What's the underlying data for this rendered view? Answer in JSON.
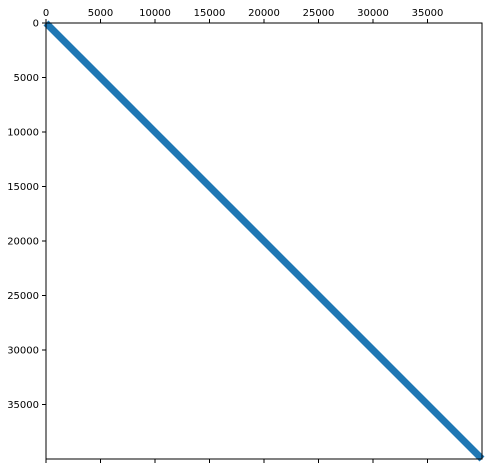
{
  "chart_data": {
    "type": "spy",
    "title": "",
    "xlabel": "",
    "ylabel": "",
    "xlim": [
      0,
      40000
    ],
    "ylim": [
      40000,
      0
    ],
    "x_ticks": [
      0,
      5000,
      10000,
      15000,
      20000,
      25000,
      30000,
      35000
    ],
    "y_ticks": [
      0,
      5000,
      10000,
      15000,
      20000,
      25000,
      30000,
      35000
    ],
    "x_tick_labels": [
      "0",
      "5000",
      "10000",
      "15000",
      "20000",
      "25000",
      "30000",
      "35000"
    ],
    "y_tick_labels": [
      "0",
      "5000",
      "10000",
      "15000",
      "20000",
      "25000",
      "30000",
      "35000"
    ],
    "x_axis_position": "top",
    "grid": false,
    "legend": "none",
    "series": [
      {
        "pattern": "main diagonal",
        "x": [
          0,
          40000
        ],
        "y": [
          0,
          40000
        ],
        "color": "#1f77b4"
      }
    ]
  }
}
